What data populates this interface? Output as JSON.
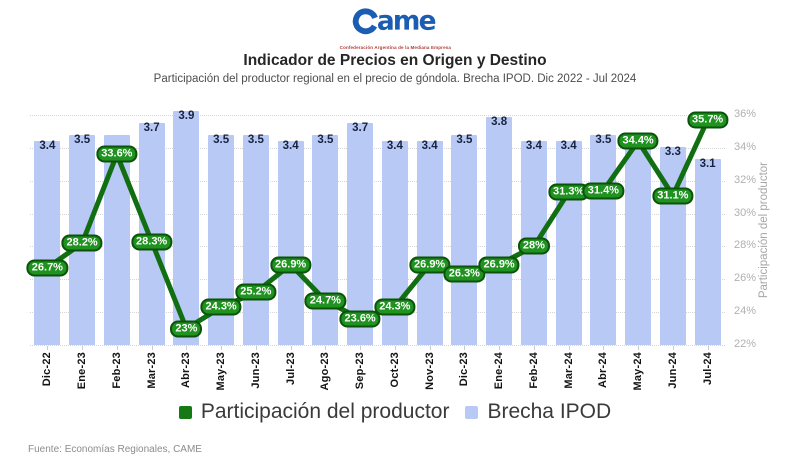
{
  "logo": {
    "brand": "ame",
    "tagline": "Confederación Argentina de la Mediana Empresa",
    "brand_color": "#1b5db3",
    "tagline_color": "#b23a36"
  },
  "header": {
    "title": "Indicador de Precios en Origen y Destino",
    "subtitle": "Participación del productor regional en el precio de góndola. Brecha IPOD. Dic 2022 - Jul 2024"
  },
  "chart_data": {
    "type": "combo",
    "categories": [
      "Dic-22",
      "Ene-23",
      "Feb-23",
      "Mar-23",
      "Abr-23",
      "May-23",
      "Jun-23",
      "Jul-23",
      "Ago-23",
      "Sep-23",
      "Oct-23",
      "Nov-23",
      "Dic-23",
      "Ene-24",
      "Feb-24",
      "Mar-24",
      "Abr-24",
      "May-24",
      "Jun-24",
      "Jul-24"
    ],
    "series": [
      {
        "name": "Brecha IPOD",
        "type": "bar",
        "color": "#b9c9f6",
        "values": [
          3.4,
          3.5,
          3.5,
          3.7,
          3.9,
          3.5,
          3.5,
          3.4,
          3.5,
          3.7,
          3.4,
          3.4,
          3.5,
          3.8,
          3.4,
          3.4,
          3.5,
          3.4,
          3.3,
          3.1
        ],
        "labels": [
          "3.4",
          "3.5",
          "",
          "3.7",
          "3.9",
          "3.5",
          "3.5",
          "3.4",
          "3.5",
          "3.7",
          "3.4",
          "3.4",
          "3.5",
          "3.8",
          "3.4",
          "3.4",
          "3.5",
          "",
          "3.3",
          "3.1"
        ]
      },
      {
        "name": "Participación del productor",
        "type": "line",
        "color": "#116e11",
        "values": [
          26.7,
          28.2,
          33.6,
          28.3,
          23,
          24.3,
          25.2,
          26.9,
          24.7,
          23.6,
          24.3,
          26.9,
          26.3,
          26.9,
          28,
          31.3,
          31.4,
          34.4,
          31.1,
          35.7
        ],
        "labels": [
          "26.7%",
          "28.2%",
          "33.6%",
          "28.3%",
          "23%",
          "24.3%",
          "25.2%",
          "26.9%",
          "24.7%",
          "23.6%",
          "24.3%",
          "26.9%",
          "26.3%",
          "26.9%",
          "28%",
          "31.3%",
          "31.4%",
          "34.4%",
          "31.1%",
          "35.7%"
        ]
      }
    ],
    "right_axis": {
      "title": "Participación del productor",
      "ticks": [
        "36%",
        "34%",
        "32%",
        "30%",
        "28%",
        "26%",
        "24%",
        "22%"
      ],
      "range": [
        22,
        36
      ]
    },
    "bar_axis_max": 4.0,
    "grid": "dotted horizontal",
    "legend_position": "bottom"
  },
  "legend": {
    "items": [
      {
        "label": "Participación del productor",
        "color": "#157a15"
      },
      {
        "label": "Brecha IPOD",
        "color": "#b9c9f6"
      }
    ]
  },
  "footer": {
    "source": "Fuente: Economías Regionales, CAME"
  }
}
